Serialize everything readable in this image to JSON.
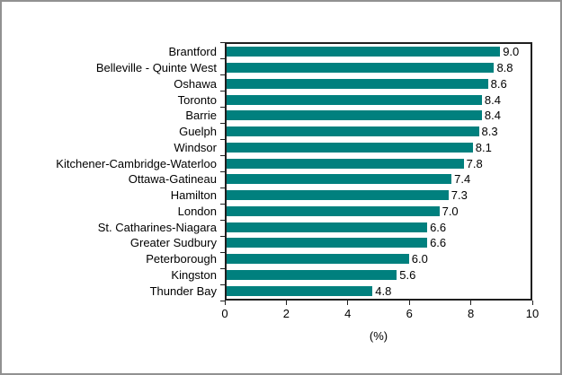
{
  "chart_data": {
    "type": "bar",
    "orientation": "horizontal",
    "title": "",
    "xlabel": "(%)",
    "ylabel": "",
    "xlim": [
      0,
      10
    ],
    "xticks": [
      "0",
      "2",
      "4",
      "6",
      "8",
      "10"
    ],
    "xtick_values": [
      0,
      2,
      4,
      6,
      8,
      10
    ],
    "grid": false,
    "legend": null,
    "bar_color": "#00807E",
    "axis_color": "#1f1f1f",
    "frame_border_color": "#919191",
    "categories": [
      "Brantford",
      "Belleville - Quinte West",
      "Oshawa",
      "Toronto",
      "Barrie",
      "Guelph",
      "Windsor",
      "Kitchener-Cambridge-Waterloo",
      "Ottawa-Gatineau",
      "Hamilton",
      "London",
      "St. Catharines-Niagara",
      "Greater Sudbury",
      "Peterborough",
      "Kingston",
      "Thunder Bay"
    ],
    "values": [
      9.0,
      8.8,
      8.6,
      8.4,
      8.4,
      8.3,
      8.1,
      7.8,
      7.4,
      7.3,
      7.0,
      6.6,
      6.6,
      6.0,
      5.6,
      4.8
    ],
    "value_labels": [
      "9.0",
      "8.8",
      "8.6",
      "8.4",
      "8.4",
      "8.3",
      "8.1",
      "7.8",
      "7.4",
      "7.3",
      "7.0",
      "6.6",
      "6.6",
      "6.0",
      "5.6",
      "4.8"
    ]
  }
}
